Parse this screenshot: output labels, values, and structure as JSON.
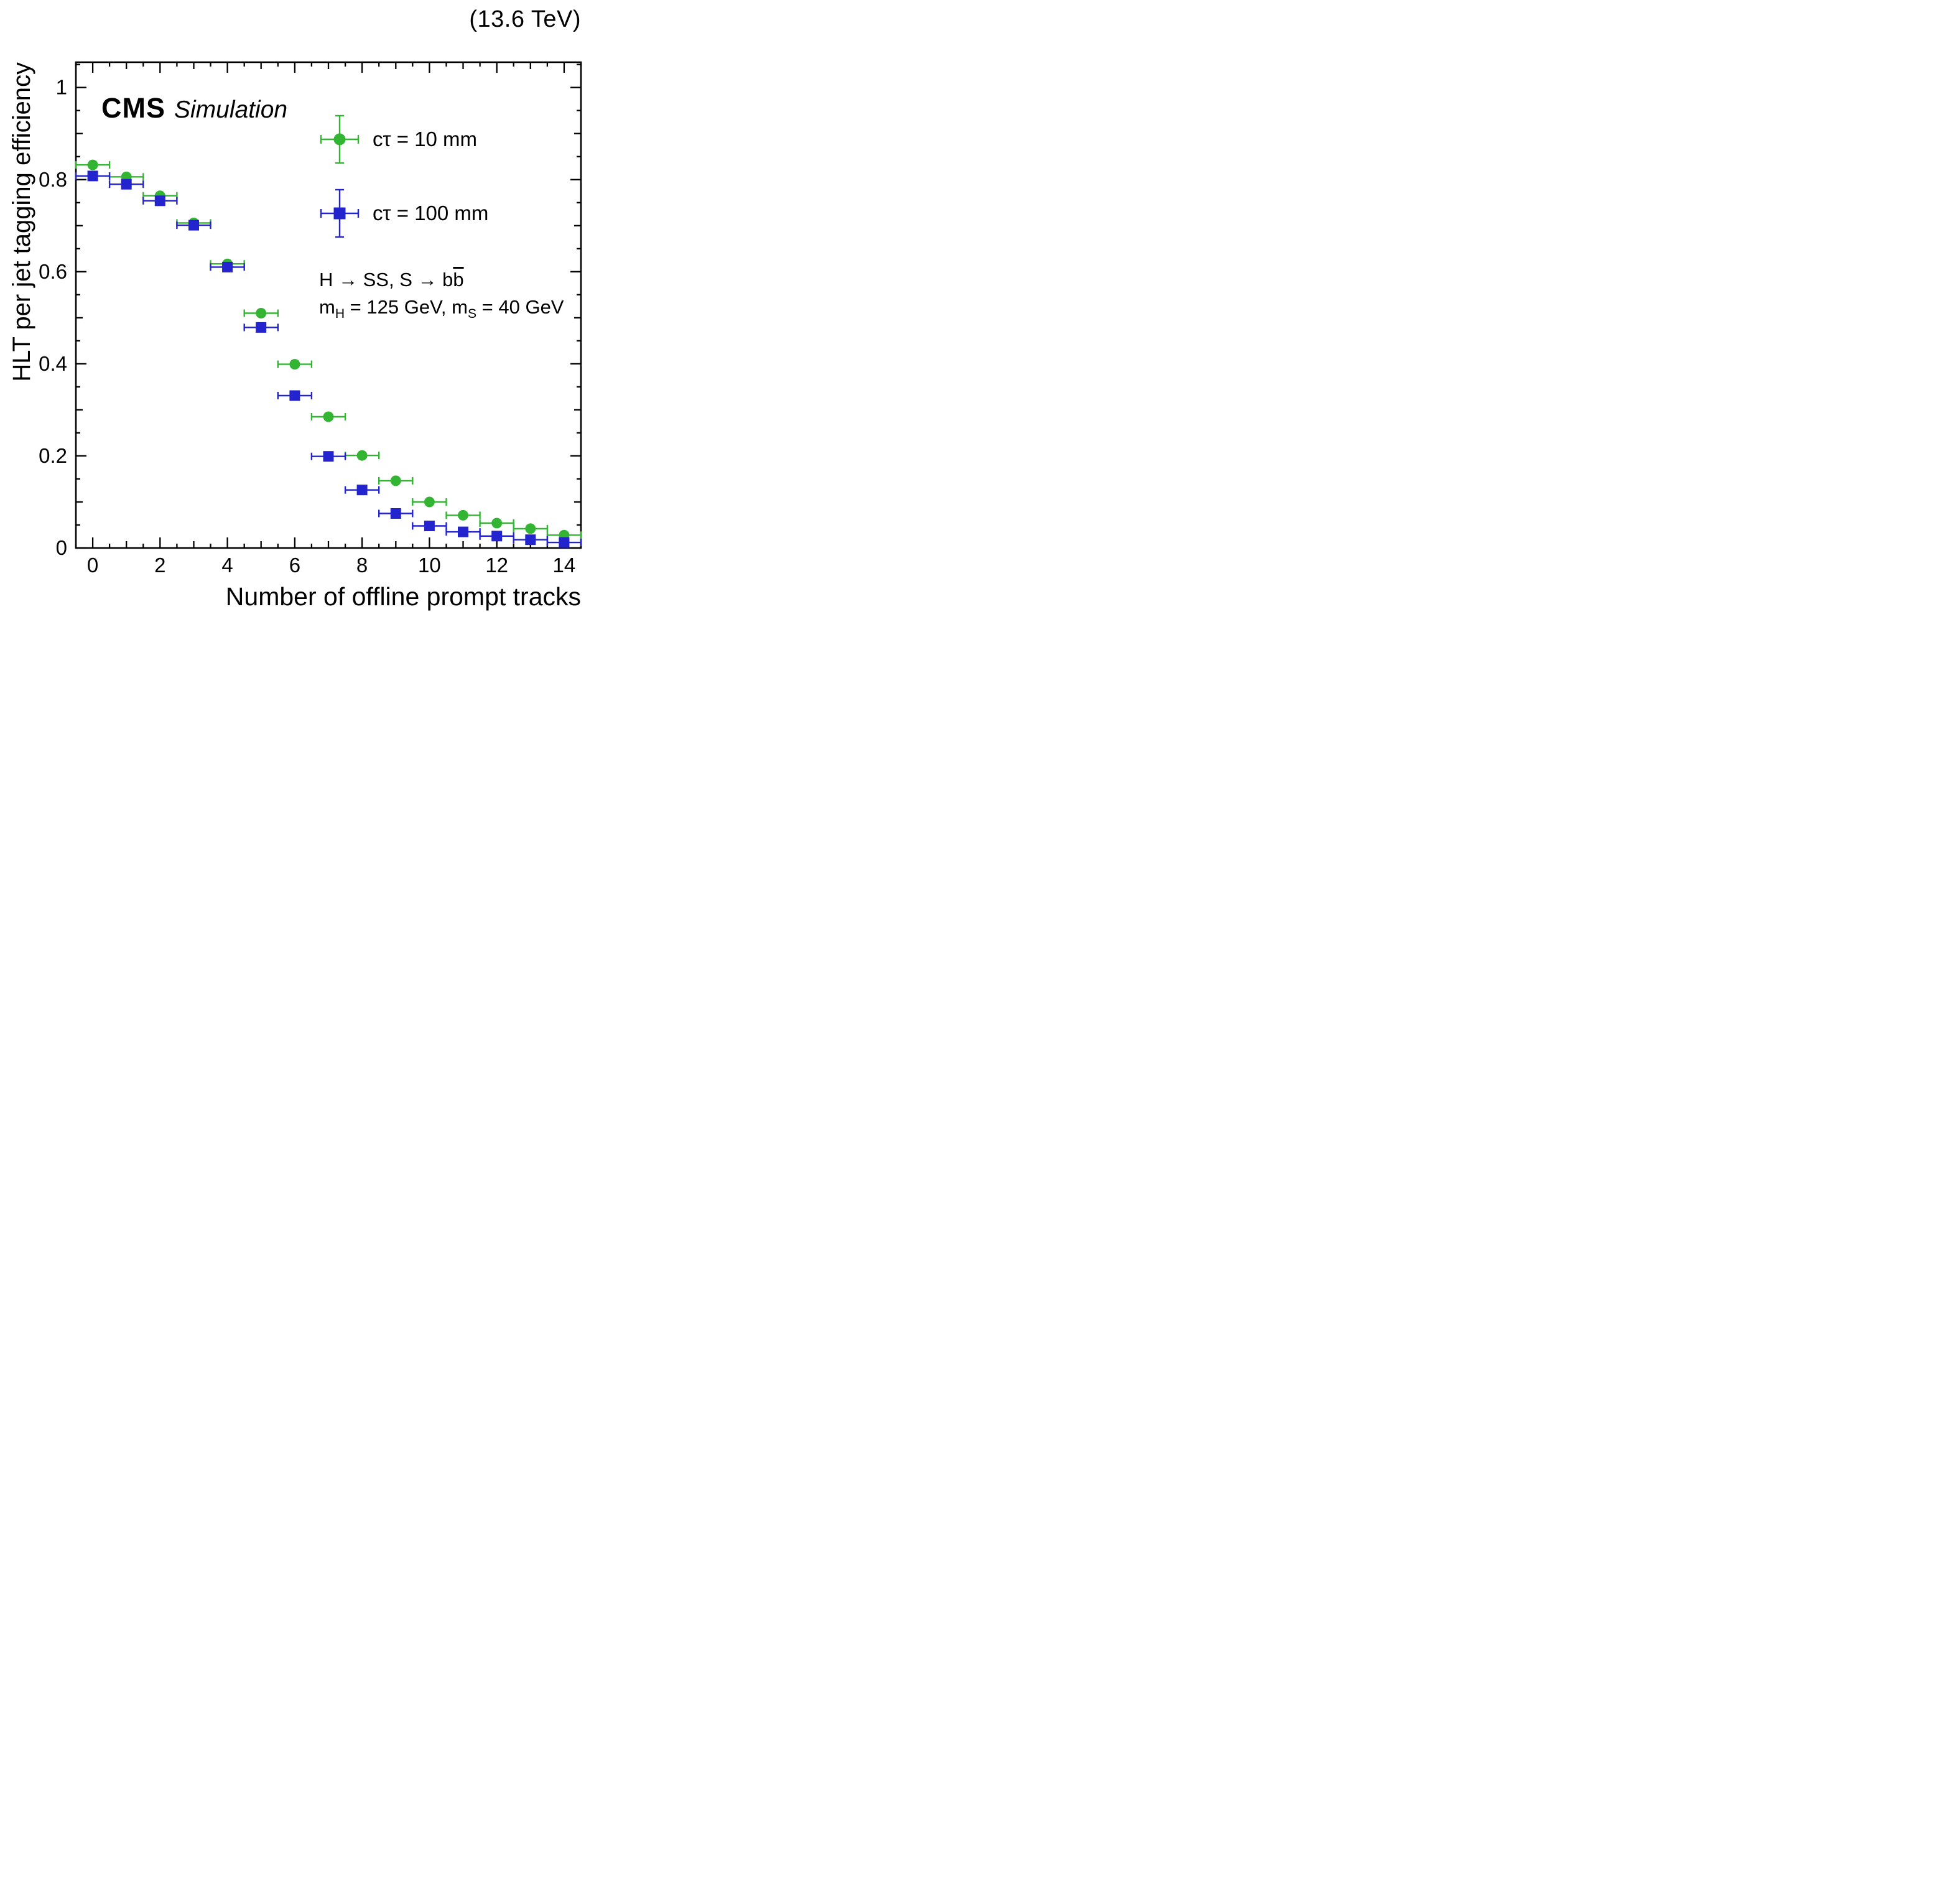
{
  "header": {
    "energy": "(13.6 TeV)"
  },
  "watermark": {
    "experiment": "CMS",
    "label": "Simulation"
  },
  "annotations": {
    "process": {
      "pre": "H → SS, S → b",
      "bbar": "b"
    },
    "masses": {
      "m1": "m",
      "sub1": "H",
      "mid": " = 125 GeV, m",
      "sub2": "S",
      "tail": " = 40 GeV"
    }
  },
  "chart_data": {
    "type": "scatter",
    "title": "",
    "xlabel": "Number of offline prompt tracks",
    "ylabel": "HLT per jet tagging efficiency",
    "xlim": [
      -0.5,
      14.5
    ],
    "ylim": [
      0,
      1.055
    ],
    "grid": false,
    "legend_position": "upper right inside",
    "xticks": {
      "major": [
        0,
        2,
        4,
        6,
        8,
        10,
        12,
        14
      ],
      "labels": [
        "0",
        "2",
        "4",
        "6",
        "8",
        "10",
        "12",
        "14"
      ],
      "minor_step": 0.5
    },
    "yticks": {
      "major": [
        0,
        0.2,
        0.4,
        0.6,
        0.8,
        1
      ],
      "labels": [
        "0",
        "0.2",
        "0.4",
        "0.6",
        "0.8",
        "1"
      ],
      "minor_step": 0.05
    },
    "x": [
      0,
      1,
      2,
      3,
      4,
      5,
      6,
      7,
      8,
      9,
      10,
      11,
      12,
      13,
      14
    ],
    "xerr": 0.5,
    "series": [
      {
        "name": "cτ = 10 mm",
        "marker": "circle",
        "color": "#33b533",
        "values": [
          0.832,
          0.806,
          0.765,
          0.706,
          0.617,
          0.51,
          0.399,
          0.285,
          0.201,
          0.146,
          0.1,
          0.071,
          0.054,
          0.042,
          0.028
        ],
        "yerr": [
          0.007,
          0.006,
          0.006,
          0.006,
          0.006,
          0.007,
          0.007,
          0.007,
          0.006,
          0.006,
          0.005,
          0.005,
          0.005,
          0.005,
          0.005
        ]
      },
      {
        "name": "cτ = 100 mm",
        "marker": "square",
        "color": "#2424cf",
        "values": [
          0.808,
          0.79,
          0.754,
          0.701,
          0.61,
          0.479,
          0.331,
          0.199,
          0.126,
          0.075,
          0.048,
          0.035,
          0.026,
          0.018,
          0.012
        ],
        "yerr": [
          0.007,
          0.006,
          0.006,
          0.006,
          0.006,
          0.007,
          0.006,
          0.006,
          0.005,
          0.005,
          0.004,
          0.004,
          0.004,
          0.004,
          0.004
        ]
      }
    ]
  }
}
